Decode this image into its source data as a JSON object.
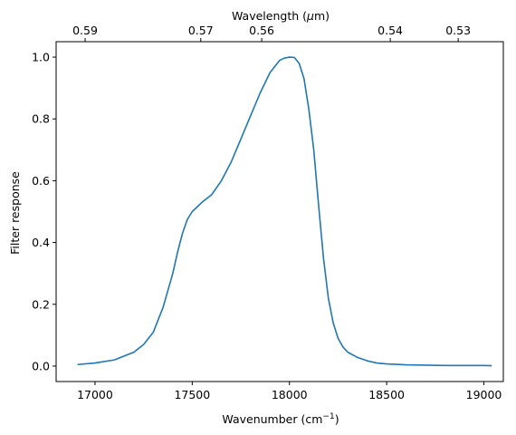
{
  "chart_data": {
    "type": "line",
    "xlabel": "Wavenumber (cm",
    "xlabel_sup": "−1",
    "xlabel_close": ")",
    "ylabel": "Filter response",
    "top_xlabel": "Wavelength (",
    "top_xlabel_mu": "μ",
    "top_xlabel_close": "m)",
    "xlim": [
      16800,
      19100
    ],
    "ylim": [
      -0.05,
      1.05
    ],
    "grid": false,
    "legend": "none",
    "line_color": "#1f77b4",
    "x_ticks": [
      17000,
      17500,
      18000,
      18500,
      19000
    ],
    "y_ticks": [
      0.0,
      0.2,
      0.4,
      0.6,
      0.8,
      1.0
    ],
    "y_tick_labels": [
      "0.0",
      "0.2",
      "0.4",
      "0.6",
      "0.8",
      "1.0"
    ],
    "top_ticks": [
      {
        "label": "0.59",
        "value": 0.59
      },
      {
        "label": "0.57",
        "value": 0.57
      },
      {
        "label": "0.56",
        "value": 0.56
      },
      {
        "label": "0.54",
        "value": 0.54
      },
      {
        "label": "0.53",
        "value": 0.53
      }
    ],
    "series": [
      {
        "x": [
          16910,
          17000,
          17100,
          17200,
          17250,
          17300,
          17350,
          17400,
          17425,
          17450,
          17475,
          17500,
          17525,
          17550,
          17600,
          17650,
          17700,
          17750,
          17800,
          17850,
          17900,
          17950,
          17975,
          18000,
          18025,
          18050,
          18075,
          18100,
          18125,
          18150,
          18175,
          18200,
          18225,
          18250,
          18275,
          18300,
          18350,
          18400,
          18450,
          18500,
          18600,
          18700,
          18800,
          18900,
          19000,
          19040
        ],
        "y": [
          0.005,
          0.01,
          0.02,
          0.045,
          0.07,
          0.11,
          0.19,
          0.3,
          0.37,
          0.43,
          0.475,
          0.5,
          0.515,
          0.53,
          0.555,
          0.6,
          0.66,
          0.735,
          0.81,
          0.885,
          0.95,
          0.99,
          0.997,
          1.0,
          0.999,
          0.98,
          0.93,
          0.83,
          0.7,
          0.52,
          0.35,
          0.22,
          0.14,
          0.09,
          0.062,
          0.045,
          0.028,
          0.017,
          0.01,
          0.007,
          0.004,
          0.003,
          0.002,
          0.002,
          0.002,
          0.001
        ]
      }
    ]
  }
}
